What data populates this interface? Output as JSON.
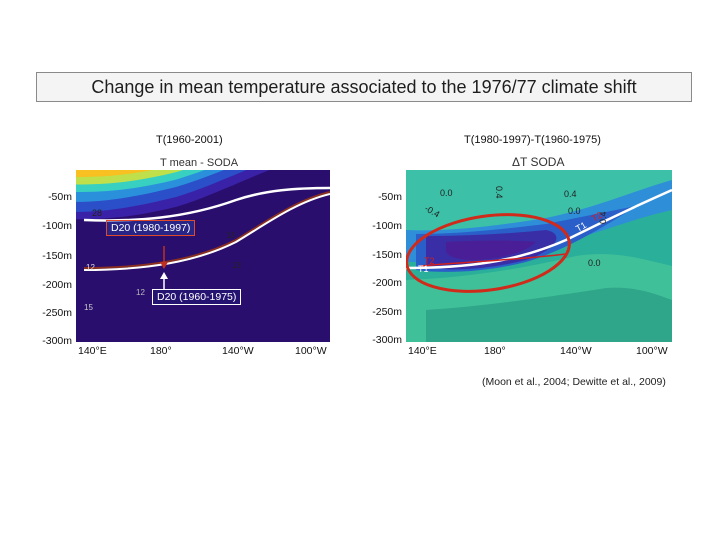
{
  "title": "Change in mean temperature associated to the 1976/77 climate shift",
  "left": {
    "header": "T(1960-2001)",
    "panel_title": "T mean - SODA",
    "callout_1980": "D20 (1980-1997)",
    "callout_1960": "D20 (1960-1975)",
    "contours": [
      "28",
      "12",
      "13",
      "13",
      "15",
      "12"
    ]
  },
  "right": {
    "header": "T(1980-1997)-T(1960-1975)",
    "panel_title": "ΔT SODA",
    "contours": [
      "0.0",
      "0.4",
      "-0.4",
      "0.4",
      "0.0",
      "0.4",
      "T1",
      "T2",
      "T2",
      "T1",
      "0.0"
    ]
  },
  "y_axis": [
    "-50m",
    "-100m",
    "-150m",
    "-200m",
    "-250m",
    "-300m"
  ],
  "x_axis": [
    "140°E",
    "180°",
    "140°W",
    "100°W"
  ],
  "citation": "(Moon et al., 2004; Dewitte et al., 2009)"
}
